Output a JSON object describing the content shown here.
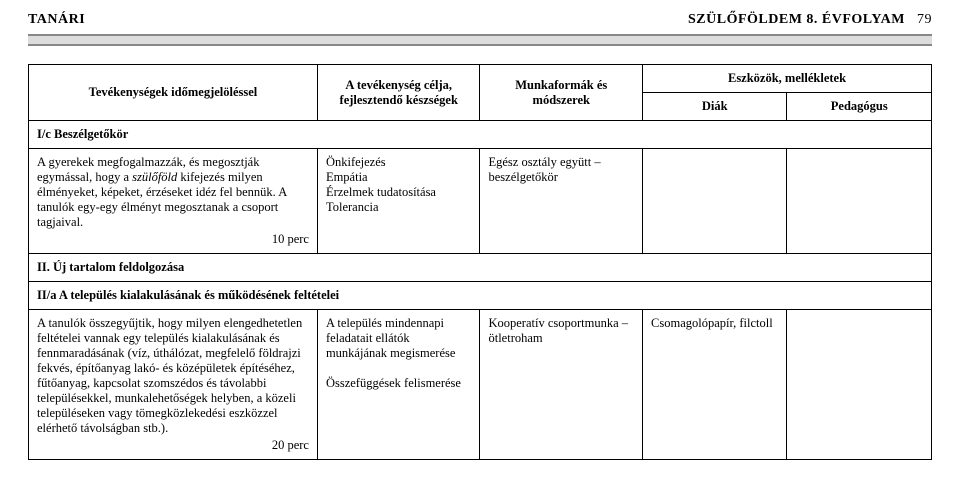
{
  "header": {
    "left": "TANÁRI",
    "right_title": "SZÜLŐFÖLDEM 8. ÉVFOLYAM",
    "page_number": "79"
  },
  "table": {
    "head": {
      "activities": "Tevékenységek időmegjelöléssel",
      "goals": "A tevékenység célja, fejlesztendő készségek",
      "methods": "Munkaformák és módszerek",
      "tools": "Eszközök, mellékletek",
      "tools_diak": "Diák",
      "tools_ped": "Pedagógus"
    },
    "sections": {
      "s1": "I/c Beszélgetőkör",
      "s2": "II. Új tartalom feldolgozása",
      "s3": "II/a A település kialakulásának és működésének feltételei"
    },
    "rows": {
      "r1": {
        "activity_pre": "A gyerekek megfogalmazzák, és megosztják egymással, hogy a ",
        "activity_italic": "szülőföld",
        "activity_post": " kifejezés milyen élményeket, képeket, érzéseket idéz fel bennük. A tanulók egy-egy élményt megosztanak a csoport tagjaival.",
        "time": "10 perc",
        "goals": "Önkifejezés\nEmpátia\nÉrzelmek tudatosítása\nTolerancia",
        "methods": "Egész osztály együtt – beszélgetőkör",
        "tool_diak": "",
        "tool_ped": ""
      },
      "r2": {
        "activity": "A tanulók összegyűjtik, hogy milyen elengedhetetlen feltételei vannak egy település kialakulásának és fennmaradásának (víz, úthálózat, megfelelő földrajzi fekvés, építőanyag lakó- és középületek építéséhez, fűtőanyag, kapcsolat szomszédos és távolabbi településekkel, munkalehetőségek helyben, a közeli településeken vagy tömegközlekedési eszközzel elérhető távolságban stb.).",
        "time": "20 perc",
        "goals": "A település mindennapi feladatait ellátók munkájának megismerése\n\nÖsszefüggések felismerése",
        "methods": "Kooperatív csoportmunka – ötletroham",
        "tool_diak": "Csomagolópapír, filctoll",
        "tool_ped": ""
      }
    }
  }
}
